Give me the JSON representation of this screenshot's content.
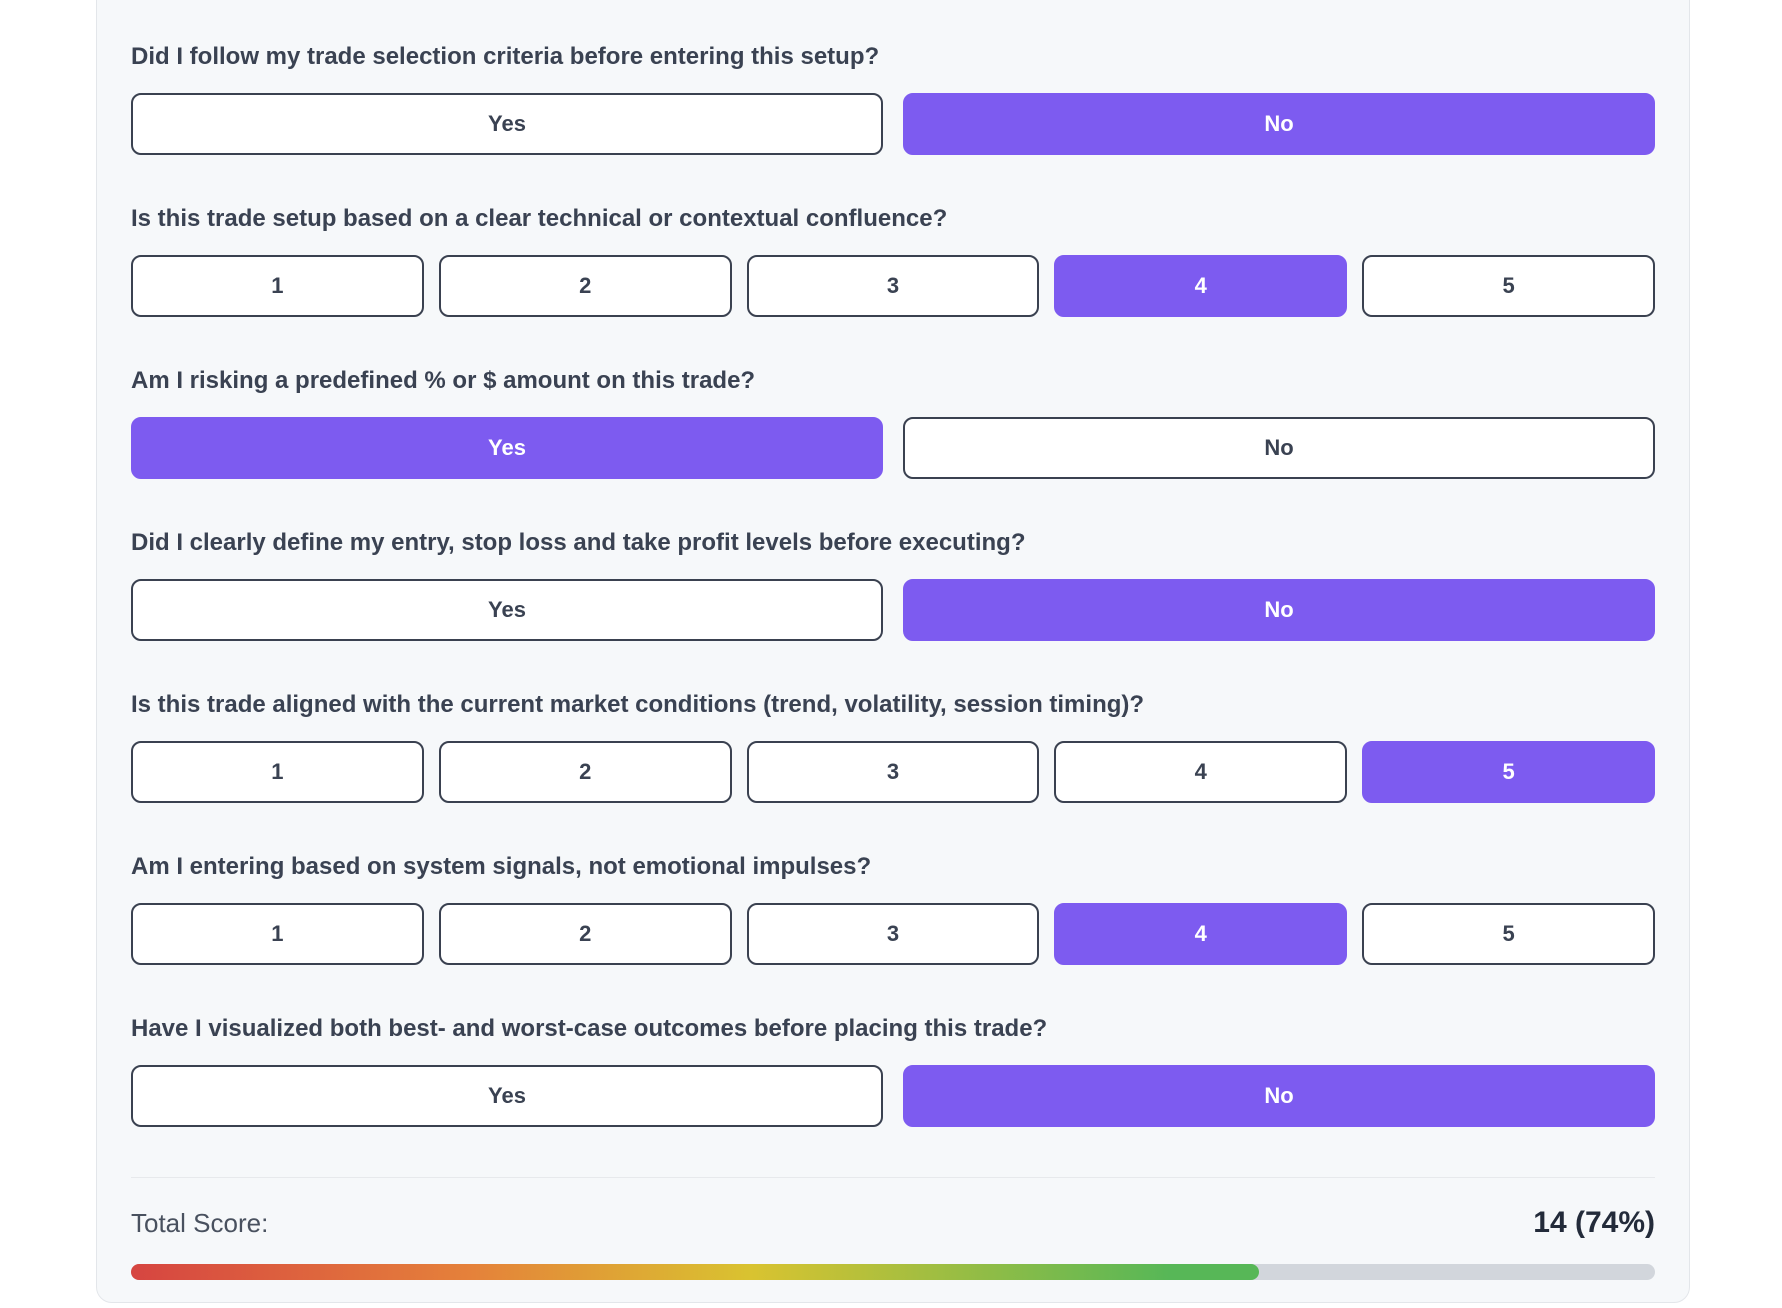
{
  "card": {
    "questions": [
      {
        "text": "Did I follow my trade selection criteria before entering this setup?",
        "type": "yesno",
        "options": [
          "Yes",
          "No"
        ],
        "selected": "No"
      },
      {
        "text": "Is this trade setup based on a clear technical or contextual confluence?",
        "type": "scale",
        "options": [
          "1",
          "2",
          "3",
          "4",
          "5"
        ],
        "selected": "4"
      },
      {
        "text": "Am I risking a predefined % or $ amount on this trade?",
        "type": "yesno",
        "options": [
          "Yes",
          "No"
        ],
        "selected": "Yes"
      },
      {
        "text": "Did I clearly define my entry, stop loss and take profit levels before executing?",
        "type": "yesno",
        "options": [
          "Yes",
          "No"
        ],
        "selected": "No"
      },
      {
        "text": "Is this trade aligned with the current market conditions (trend, volatility, session timing)?",
        "type": "scale",
        "options": [
          "1",
          "2",
          "3",
          "4",
          "5"
        ],
        "selected": "5"
      },
      {
        "text": "Am I entering based on system signals, not emotional impulses?",
        "type": "scale",
        "options": [
          "1",
          "2",
          "3",
          "4",
          "5"
        ],
        "selected": "4"
      },
      {
        "text": "Have I visualized both best- and worst-case outcomes before placing this trade?",
        "type": "yesno",
        "options": [
          "Yes",
          "No"
        ],
        "selected": "No"
      }
    ],
    "footer": {
      "total_score_label": "Total Score:",
      "total_score_value": "14 (74%)",
      "progress_percent": 74
    },
    "colors": {
      "accent": "#7d5bf0",
      "progress_track": "#d2d6dc",
      "progress_gradient": [
        "#d64541",
        "#e5813a",
        "#d9c330",
        "#57b757"
      ],
      "card_background": "#f6f8fa"
    }
  }
}
